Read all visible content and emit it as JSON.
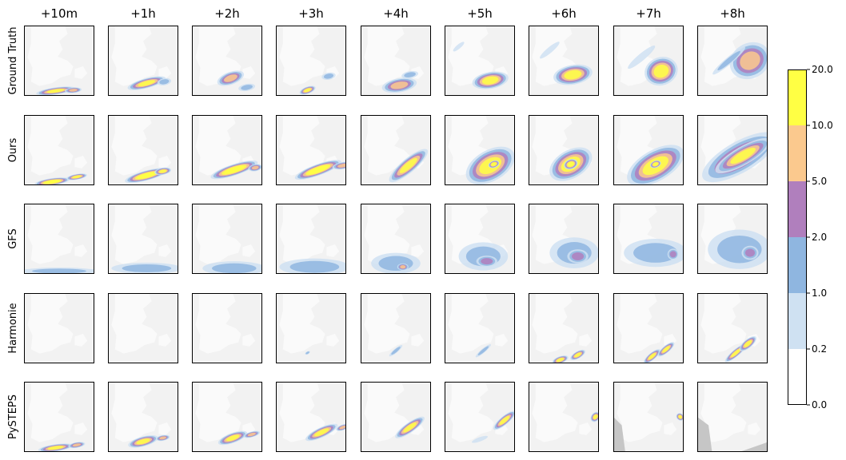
{
  "chart_data": {
    "type": "heatmap",
    "title": "",
    "columns": [
      "+10m",
      "+1h",
      "+2h",
      "+3h",
      "+4h",
      "+5h",
      "+6h",
      "+7h",
      "+8h"
    ],
    "rows": [
      "Ground Truth",
      "Ours",
      "GFS",
      "Harmonie",
      "PySTEPS"
    ],
    "colorbar": {
      "bounds": [
        0.0,
        0.2,
        1.0,
        2.0,
        5.0,
        10.0,
        20.0
      ],
      "tick_labels": [
        "0.0",
        "0.2",
        "1.0",
        "2.0",
        "5.0",
        "10.0",
        "20.0"
      ],
      "colors": [
        "#ffffff",
        "#cfe1f2",
        "#8fb6e0",
        "#b07fbd",
        "#fbc98e",
        "#ffff44"
      ]
    },
    "map_colors": {
      "sea": "#f2f2f2",
      "land": "#fafafa",
      "no_data": "#c6c6c6"
    },
    "precip_features": {
      "Ground Truth": [
        [
          {
            "cx": 0.45,
            "cy": 0.93,
            "rx": 0.28,
            "ry": 0.05,
            "rot": -8,
            "lvl": 5
          },
          {
            "cx": 0.7,
            "cy": 0.92,
            "rx": 0.12,
            "ry": 0.04,
            "rot": -5,
            "lvl": 4
          }
        ],
        [
          {
            "cx": 0.55,
            "cy": 0.82,
            "rx": 0.28,
            "ry": 0.07,
            "rot": -15,
            "lvl": 5
          },
          {
            "cx": 0.8,
            "cy": 0.8,
            "rx": 0.1,
            "ry": 0.05,
            "rot": -10,
            "lvl": 2
          }
        ],
        [
          {
            "cx": 0.55,
            "cy": 0.75,
            "rx": 0.2,
            "ry": 0.09,
            "rot": -20,
            "lvl": 4
          },
          {
            "cx": 0.78,
            "cy": 0.88,
            "rx": 0.12,
            "ry": 0.05,
            "rot": -10,
            "lvl": 2
          }
        ],
        [
          {
            "cx": 0.45,
            "cy": 0.92,
            "rx": 0.12,
            "ry": 0.05,
            "rot": -20,
            "lvl": 5
          },
          {
            "cx": 0.75,
            "cy": 0.72,
            "rx": 0.1,
            "ry": 0.05,
            "rot": -10,
            "lvl": 2
          }
        ],
        [
          {
            "cx": 0.55,
            "cy": 0.85,
            "rx": 0.25,
            "ry": 0.1,
            "rot": -10,
            "lvl": 4
          },
          {
            "cx": 0.7,
            "cy": 0.7,
            "rx": 0.12,
            "ry": 0.05,
            "rot": -10,
            "lvl": 2
          }
        ],
        [
          {
            "cx": 0.65,
            "cy": 0.78,
            "rx": 0.26,
            "ry": 0.12,
            "rot": -10,
            "lvl": 5
          },
          {
            "cx": 0.2,
            "cy": 0.3,
            "rx": 0.1,
            "ry": 0.03,
            "rot": -40,
            "lvl": 1
          }
        ],
        [
          {
            "cx": 0.63,
            "cy": 0.7,
            "rx": 0.28,
            "ry": 0.14,
            "rot": -10,
            "lvl": 5
          },
          {
            "cx": 0.3,
            "cy": 0.35,
            "rx": 0.18,
            "ry": 0.04,
            "rot": -40,
            "lvl": 1
          }
        ],
        [
          {
            "cx": 0.68,
            "cy": 0.65,
            "rx": 0.24,
            "ry": 0.2,
            "rot": -20,
            "lvl": 5
          },
          {
            "cx": 0.4,
            "cy": 0.45,
            "rx": 0.25,
            "ry": 0.05,
            "rot": -40,
            "lvl": 1
          }
        ],
        [
          {
            "cx": 0.75,
            "cy": 0.5,
            "rx": 0.3,
            "ry": 0.25,
            "rot": -30,
            "lvl": 4
          },
          {
            "cx": 0.45,
            "cy": 0.5,
            "rx": 0.3,
            "ry": 0.05,
            "rot": -40,
            "lvl": 2
          }
        ]
      ],
      "Ours": [
        [
          {
            "cx": 0.4,
            "cy": 0.95,
            "rx": 0.25,
            "ry": 0.05,
            "rot": -8,
            "lvl": 6
          },
          {
            "cx": 0.75,
            "cy": 0.88,
            "rx": 0.15,
            "ry": 0.04,
            "rot": -10,
            "lvl": 5
          }
        ],
        [
          {
            "cx": 0.55,
            "cy": 0.86,
            "rx": 0.32,
            "ry": 0.07,
            "rot": -15,
            "lvl": 6
          },
          {
            "cx": 0.78,
            "cy": 0.8,
            "rx": 0.12,
            "ry": 0.05,
            "rot": -10,
            "lvl": 5
          }
        ],
        [
          {
            "cx": 0.6,
            "cy": 0.78,
            "rx": 0.35,
            "ry": 0.08,
            "rot": -18,
            "lvl": 6
          },
          {
            "cx": 0.9,
            "cy": 0.75,
            "rx": 0.1,
            "ry": 0.05,
            "rot": -10,
            "lvl": 4
          }
        ],
        [
          {
            "cx": 0.6,
            "cy": 0.78,
            "rx": 0.35,
            "ry": 0.08,
            "rot": -20,
            "lvl": 6
          },
          {
            "cx": 0.95,
            "cy": 0.72,
            "rx": 0.15,
            "ry": 0.05,
            "rot": -10,
            "lvl": 4
          }
        ],
        [
          {
            "cx": 0.68,
            "cy": 0.72,
            "rx": 0.35,
            "ry": 0.1,
            "rot": -40,
            "lvl": 5
          }
        ],
        [
          {
            "cx": 0.65,
            "cy": 0.72,
            "rx": 0.38,
            "ry": 0.22,
            "rot": -30,
            "lvl": 5
          },
          {
            "cx": 0.7,
            "cy": 0.7,
            "rx": 0.08,
            "ry": 0.05,
            "rot": -20,
            "lvl": 6
          }
        ],
        [
          {
            "cx": 0.6,
            "cy": 0.7,
            "rx": 0.33,
            "ry": 0.2,
            "rot": -30,
            "lvl": 5
          },
          {
            "cx": 0.6,
            "cy": 0.7,
            "rx": 0.1,
            "ry": 0.07,
            "rot": -20,
            "lvl": 6
          }
        ],
        [
          {
            "cx": 0.6,
            "cy": 0.72,
            "rx": 0.45,
            "ry": 0.22,
            "rot": -30,
            "lvl": 5
          },
          {
            "cx": 0.6,
            "cy": 0.7,
            "rx": 0.08,
            "ry": 0.05,
            "rot": -20,
            "lvl": 6
          }
        ],
        [
          {
            "cx": 0.6,
            "cy": 0.6,
            "rx": 0.6,
            "ry": 0.22,
            "rot": -30,
            "lvl": 4
          },
          {
            "cx": 0.65,
            "cy": 0.58,
            "rx": 0.45,
            "ry": 0.13,
            "rot": -30,
            "lvl": 5
          }
        ]
      ],
      "GFS": [
        [
          {
            "cx": 0.5,
            "cy": 0.96,
            "rx": 0.55,
            "ry": 0.05,
            "rot": 0,
            "lvl": 2
          }
        ],
        [
          {
            "cx": 0.55,
            "cy": 0.92,
            "rx": 0.5,
            "ry": 0.08,
            "rot": 0,
            "lvl": 2
          }
        ],
        [
          {
            "cx": 0.6,
            "cy": 0.92,
            "rx": 0.45,
            "ry": 0.1,
            "rot": 0,
            "lvl": 2
          }
        ],
        [
          {
            "cx": 0.55,
            "cy": 0.9,
            "rx": 0.5,
            "ry": 0.12,
            "rot": 0,
            "lvl": 2
          }
        ],
        [
          {
            "cx": 0.5,
            "cy": 0.85,
            "rx": 0.35,
            "ry": 0.15,
            "rot": 0,
            "lvl": 2
          },
          {
            "cx": 0.6,
            "cy": 0.9,
            "rx": 0.08,
            "ry": 0.05,
            "rot": 0,
            "lvl": 4
          }
        ],
        [
          {
            "cx": 0.55,
            "cy": 0.75,
            "rx": 0.35,
            "ry": 0.2,
            "rot": 0,
            "lvl": 2
          },
          {
            "cx": 0.6,
            "cy": 0.82,
            "rx": 0.15,
            "ry": 0.08,
            "rot": 0,
            "lvl": 3
          }
        ],
        [
          {
            "cx": 0.65,
            "cy": 0.7,
            "rx": 0.35,
            "ry": 0.22,
            "rot": 0,
            "lvl": 2
          },
          {
            "cx": 0.7,
            "cy": 0.75,
            "rx": 0.15,
            "ry": 0.1,
            "rot": 0,
            "lvl": 3
          }
        ],
        [
          {
            "cx": 0.6,
            "cy": 0.7,
            "rx": 0.45,
            "ry": 0.2,
            "rot": 0,
            "lvl": 2
          },
          {
            "cx": 0.85,
            "cy": 0.72,
            "rx": 0.08,
            "ry": 0.08,
            "rot": 0,
            "lvl": 3
          }
        ],
        [
          {
            "cx": 0.6,
            "cy": 0.65,
            "rx": 0.45,
            "ry": 0.28,
            "rot": 0,
            "lvl": 2
          },
          {
            "cx": 0.75,
            "cy": 0.7,
            "rx": 0.12,
            "ry": 0.1,
            "rot": 0,
            "lvl": 3
          }
        ]
      ],
      "Harmonie": [
        [],
        [],
        [],
        [
          {
            "cx": 0.45,
            "cy": 0.85,
            "rx": 0.04,
            "ry": 0.02,
            "rot": -30,
            "lvl": 2
          }
        ],
        [
          {
            "cx": 0.5,
            "cy": 0.82,
            "rx": 0.12,
            "ry": 0.03,
            "rot": -40,
            "lvl": 2
          }
        ],
        [
          {
            "cx": 0.55,
            "cy": 0.82,
            "rx": 0.14,
            "ry": 0.03,
            "rot": -40,
            "lvl": 2
          }
        ],
        [
          {
            "cx": 0.45,
            "cy": 0.95,
            "rx": 0.12,
            "ry": 0.05,
            "rot": -20,
            "lvl": 5
          },
          {
            "cx": 0.7,
            "cy": 0.88,
            "rx": 0.12,
            "ry": 0.05,
            "rot": -30,
            "lvl": 5
          }
        ],
        [
          {
            "cx": 0.55,
            "cy": 0.9,
            "rx": 0.15,
            "ry": 0.05,
            "rot": -40,
            "lvl": 5
          },
          {
            "cx": 0.75,
            "cy": 0.8,
            "rx": 0.15,
            "ry": 0.05,
            "rot": -40,
            "lvl": 5
          }
        ],
        [
          {
            "cx": 0.55,
            "cy": 0.85,
            "rx": 0.2,
            "ry": 0.05,
            "rot": -40,
            "lvl": 5
          },
          {
            "cx": 0.72,
            "cy": 0.72,
            "rx": 0.15,
            "ry": 0.06,
            "rot": -40,
            "lvl": 5
          }
        ]
      ],
      "PySTEPS": [
        [
          {
            "cx": 0.45,
            "cy": 0.94,
            "rx": 0.25,
            "ry": 0.05,
            "rot": -8,
            "lvl": 5
          },
          {
            "cx": 0.75,
            "cy": 0.9,
            "rx": 0.12,
            "ry": 0.04,
            "rot": -10,
            "lvl": 4
          }
        ],
        [
          {
            "cx": 0.5,
            "cy": 0.85,
            "rx": 0.22,
            "ry": 0.07,
            "rot": -15,
            "lvl": 5
          },
          {
            "cx": 0.78,
            "cy": 0.8,
            "rx": 0.1,
            "ry": 0.04,
            "rot": -10,
            "lvl": 4
          }
        ],
        [
          {
            "cx": 0.58,
            "cy": 0.8,
            "rx": 0.22,
            "ry": 0.07,
            "rot": -20,
            "lvl": 5
          },
          {
            "cx": 0.85,
            "cy": 0.75,
            "rx": 0.12,
            "ry": 0.04,
            "rot": -15,
            "lvl": 4
          }
        ],
        [
          {
            "cx": 0.65,
            "cy": 0.72,
            "rx": 0.25,
            "ry": 0.07,
            "rot": -25,
            "lvl": 5
          },
          {
            "cx": 0.95,
            "cy": 0.65,
            "rx": 0.1,
            "ry": 0.04,
            "rot": -20,
            "lvl": 4
          }
        ],
        [
          {
            "cx": 0.7,
            "cy": 0.65,
            "rx": 0.25,
            "ry": 0.07,
            "rot": -35,
            "lvl": 5
          }
        ],
        [
          {
            "cx": 0.85,
            "cy": 0.55,
            "rx": 0.2,
            "ry": 0.06,
            "rot": -40,
            "lvl": 5
          },
          {
            "cx": 0.5,
            "cy": 0.82,
            "rx": 0.12,
            "ry": 0.03,
            "rot": -20,
            "lvl": 1
          }
        ],
        [
          {
            "cx": 0.95,
            "cy": 0.5,
            "rx": 0.08,
            "ry": 0.06,
            "rot": -50,
            "lvl": 5
          }
        ],
        [
          {
            "cx": 0.95,
            "cy": 0.5,
            "rx": 0.05,
            "ry": 0.06,
            "rot": -50,
            "lvl": 5
          }
        ],
        []
      ]
    }
  }
}
